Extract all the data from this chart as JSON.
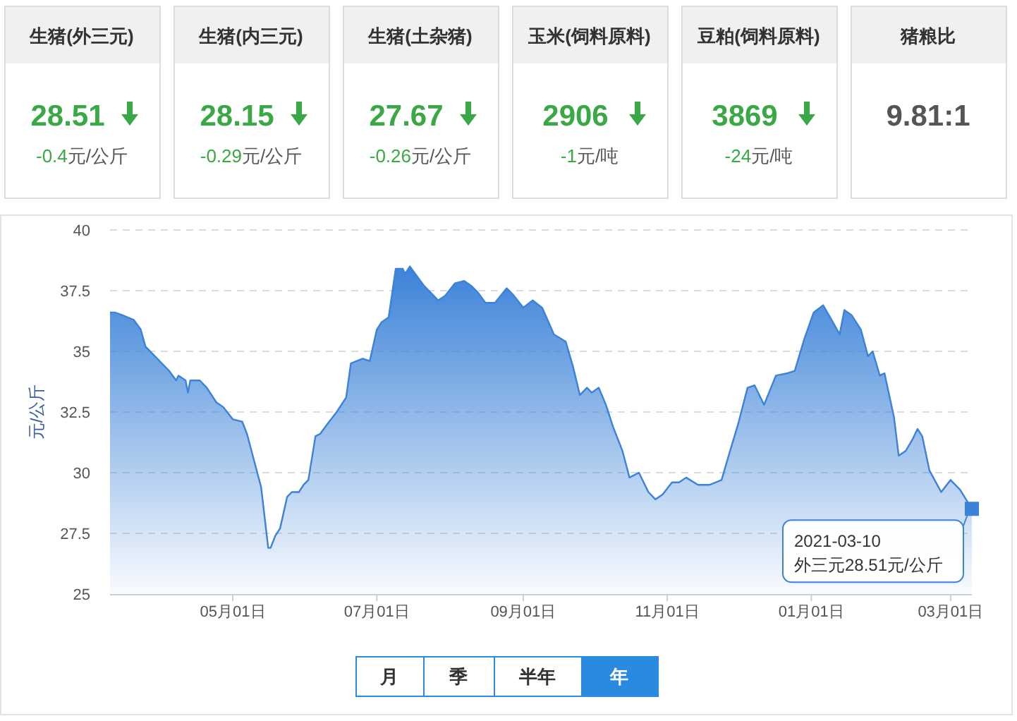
{
  "chart_data": [
    {
      "type": "other",
      "title": "生猪(外三元)",
      "annotations": [
        "28.51",
        "-0.4元/公斤"
      ]
    },
    {
      "type": "other",
      "title": "生猪(内三元)",
      "annotations": [
        "28.15",
        "-0.29元/公斤"
      ]
    },
    {
      "type": "other",
      "title": "生猪(土杂猪)",
      "annotations": [
        "27.67",
        "-0.26元/公斤"
      ]
    },
    {
      "type": "other",
      "title": "玉米(饲料原料)",
      "annotations": [
        "2906",
        "-1元/吨"
      ]
    },
    {
      "type": "other",
      "title": "豆粕(饲料原料)",
      "annotations": [
        "3869",
        "-24元/吨"
      ]
    },
    {
      "type": "other",
      "title": "猪粮比",
      "annotations": [
        "9.81:1"
      ]
    },
    {
      "type": "area",
      "ylabel": "元/公斤",
      "color": "#3b82d8",
      "grid": "y",
      "x": [
        "2020-03-10",
        "2020-03-12",
        "2020-03-15",
        "2020-03-20",
        "2020-03-23",
        "2020-03-25",
        "2020-03-31",
        "2020-04-04",
        "2020-04-07",
        "2020-04-08",
        "2020-04-11",
        "2020-04-12",
        "2020-04-13",
        "2020-04-17",
        "2020-04-20",
        "2020-04-24",
        "2020-04-27",
        "2020-05-01",
        "2020-05-05",
        "2020-05-07",
        "2020-05-10",
        "2020-05-13",
        "2020-05-16",
        "2020-05-17",
        "2020-05-19",
        "2020-05-21",
        "2020-05-24",
        "2020-05-26",
        "2020-05-29",
        "2020-05-31",
        "2020-06-02",
        "2020-06-05",
        "2020-06-07",
        "2020-06-10",
        "2020-06-14",
        "2020-06-18",
        "2020-06-20",
        "2020-06-25",
        "2020-06-28",
        "2020-07-01",
        "2020-07-03",
        "2020-07-06",
        "2020-07-09",
        "2020-07-12",
        "2020-07-13",
        "2020-07-15",
        "2020-07-18",
        "2020-07-21",
        "2020-07-27",
        "2020-07-30",
        "2020-08-03",
        "2020-08-07",
        "2020-08-10",
        "2020-08-13",
        "2020-08-16",
        "2020-08-20",
        "2020-08-25",
        "2020-08-28",
        "2020-09-01",
        "2020-09-05",
        "2020-09-09",
        "2020-09-14",
        "2020-09-19",
        "2020-09-22",
        "2020-09-25",
        "2020-09-28",
        "2020-09-30",
        "2020-10-03",
        "2020-10-06",
        "2020-10-09",
        "2020-10-13",
        "2020-10-16",
        "2020-10-20",
        "2020-10-24",
        "2020-10-27",
        "2020-10-30",
        "2020-11-03",
        "2020-11-06",
        "2020-11-09",
        "2020-11-14",
        "2020-11-19",
        "2020-11-24",
        "2020-11-27",
        "2020-12-01",
        "2020-12-05",
        "2020-12-08",
        "2020-12-12",
        "2020-12-17",
        "2020-12-22",
        "2020-12-25",
        "2020-12-29",
        "2021-01-02",
        "2021-01-06",
        "2021-01-09",
        "2021-01-13",
        "2021-01-15",
        "2021-01-18",
        "2021-01-22",
        "2021-01-25",
        "2021-01-27",
        "2021-01-30",
        "2021-02-01",
        "2021-02-05",
        "2021-02-07",
        "2021-02-10",
        "2021-02-13",
        "2021-02-15",
        "2021-02-17",
        "2021-02-20",
        "2021-02-25",
        "2021-03-01",
        "2021-03-05",
        "2021-03-10"
      ],
      "values": [
        36.6,
        36.6,
        36.5,
        36.3,
        35.9,
        35.2,
        34.6,
        34.2,
        33.8,
        34.0,
        33.8,
        33.3,
        33.8,
        33.8,
        33.5,
        32.9,
        32.7,
        32.2,
        32.1,
        31.6,
        30.5,
        29.4,
        26.9,
        26.9,
        27.4,
        27.7,
        29.0,
        29.2,
        29.2,
        29.5,
        29.7,
        31.5,
        31.6,
        32.0,
        32.5,
        33.1,
        34.5,
        34.7,
        34.6,
        35.9,
        36.2,
        36.4,
        38.4,
        38.4,
        38.2,
        38.5,
        38.1,
        37.7,
        37.1,
        37.3,
        37.8,
        37.9,
        37.7,
        37.4,
        37.0,
        37.0,
        37.6,
        37.3,
        36.8,
        37.1,
        36.8,
        35.7,
        35.4,
        34.4,
        33.2,
        33.5,
        33.3,
        33.5,
        32.8,
        31.9,
        30.9,
        29.8,
        30.0,
        29.2,
        28.9,
        29.1,
        29.6,
        29.6,
        29.8,
        29.5,
        29.5,
        29.7,
        30.7,
        32.0,
        33.5,
        33.6,
        32.8,
        34.0,
        34.1,
        34.2,
        35.5,
        36.6,
        36.9,
        36.4,
        35.7,
        36.7,
        36.5,
        35.9,
        34.8,
        35.0,
        34.0,
        34.1,
        32.3,
        30.7,
        30.9,
        31.4,
        31.8,
        31.5,
        30.1,
        29.2,
        29.7,
        29.3,
        28.51
      ],
      "xlim": [
        "2020-03-10",
        "2021-03-10"
      ],
      "xticks": [
        {
          "value": "2020-05-01",
          "label": "05月01日"
        },
        {
          "value": "2020-07-01",
          "label": "07月01日"
        },
        {
          "value": "2020-09-01",
          "label": "09月01日"
        },
        {
          "value": "2020-11-01",
          "label": "11月01日"
        },
        {
          "value": "2021-01-01",
          "label": "01月01日"
        },
        {
          "value": "2021-03-01",
          "label": "03月01日"
        }
      ],
      "ylim": [
        25,
        40
      ],
      "yticks": [
        25,
        27.5,
        30,
        32.5,
        35,
        37.5,
        40
      ],
      "annotations": [
        {
          "text": "2021-03-10\n外三元28.51元/公斤",
          "x": "2021-03-10",
          "y": 28.51
        },
        "月",
        "季",
        "半年",
        "年"
      ]
    }
  ]
}
